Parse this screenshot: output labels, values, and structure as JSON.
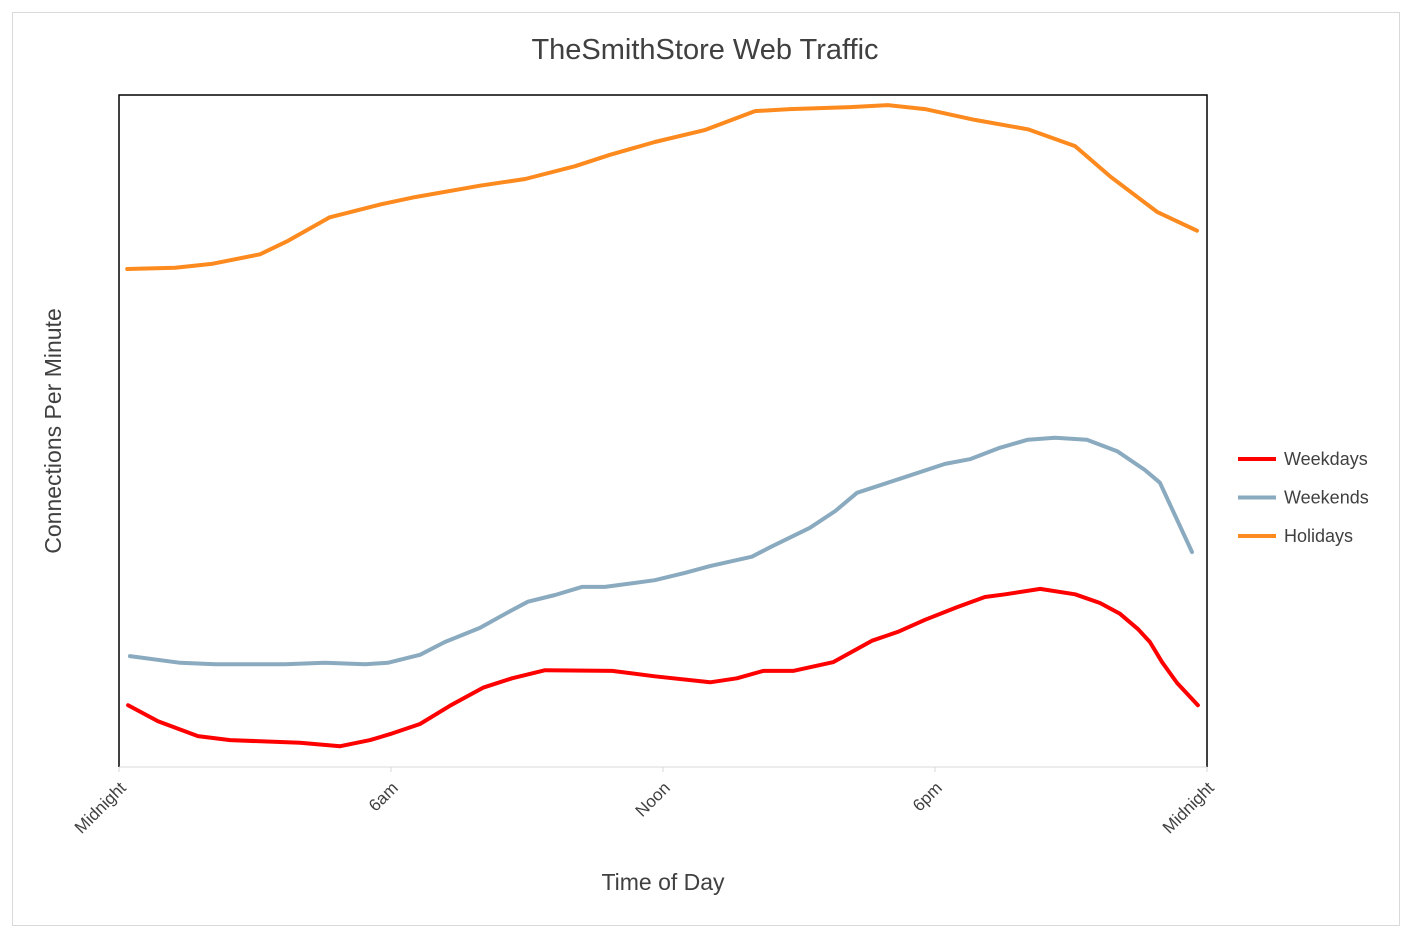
{
  "chart_data": {
    "type": "line",
    "title": "TheSmithStore Web Traffic",
    "xlabel": "Time of Day",
    "ylabel": "Connections Per Minute",
    "xlim": [
      0,
      24
    ],
    "ylim": [
      0,
      100
    ],
    "y_ticks_shown": false,
    "grid": false,
    "legend_position": "right",
    "x_ticks": [
      {
        "value": 0,
        "label": "Midnight"
      },
      {
        "value": 6,
        "label": "6am"
      },
      {
        "value": 12,
        "label": "Noon"
      },
      {
        "value": 18,
        "label": "6pm"
      },
      {
        "value": 24,
        "label": "Midnight"
      }
    ],
    "series": [
      {
        "name": "Weekdays",
        "color": "#ff0000",
        "points": [
          [
            0.2,
            9.2
          ],
          [
            0.86,
            6.8
          ],
          [
            1.74,
            4.6
          ],
          [
            2.45,
            4.0
          ],
          [
            3.99,
            3.6
          ],
          [
            4.88,
            3.1
          ],
          [
            5.54,
            4.0
          ],
          [
            5.98,
            4.9
          ],
          [
            6.64,
            6.4
          ],
          [
            7.3,
            9.1
          ],
          [
            8.03,
            11.8
          ],
          [
            8.67,
            13.2
          ],
          [
            9.4,
            14.4
          ],
          [
            10.88,
            14.3
          ],
          [
            11.82,
            13.5
          ],
          [
            13.04,
            12.6
          ],
          [
            13.63,
            13.2
          ],
          [
            14.21,
            14.3
          ],
          [
            14.87,
            14.3
          ],
          [
            15.75,
            15.6
          ],
          [
            16.61,
            18.8
          ],
          [
            17.18,
            20.1
          ],
          [
            17.78,
            21.9
          ],
          [
            18.49,
            23.8
          ],
          [
            19.1,
            25.3
          ],
          [
            19.55,
            25.7
          ],
          [
            20.32,
            26.5
          ],
          [
            21.09,
            25.7
          ],
          [
            21.64,
            24.4
          ],
          [
            22.08,
            22.8
          ],
          [
            22.48,
            20.5
          ],
          [
            22.74,
            18.6
          ],
          [
            23.01,
            15.6
          ],
          [
            23.34,
            12.5
          ],
          [
            23.8,
            9.2
          ]
        ]
      },
      {
        "name": "Weekends",
        "color": "#8aaabf",
        "points": [
          [
            0.24,
            16.5
          ],
          [
            1.35,
            15.5
          ],
          [
            2.12,
            15.3
          ],
          [
            3.66,
            15.3
          ],
          [
            4.54,
            15.5
          ],
          [
            5.43,
            15.3
          ],
          [
            5.93,
            15.5
          ],
          [
            6.64,
            16.7
          ],
          [
            7.19,
            18.6
          ],
          [
            7.96,
            20.7
          ],
          [
            8.63,
            23.2
          ],
          [
            9.02,
            24.6
          ],
          [
            9.62,
            25.6
          ],
          [
            10.21,
            26.8
          ],
          [
            10.72,
            26.8
          ],
          [
            11.82,
            27.8
          ],
          [
            12.49,
            28.9
          ],
          [
            13.04,
            29.9
          ],
          [
            13.96,
            31.3
          ],
          [
            14.36,
            32.7
          ],
          [
            15.24,
            35.6
          ],
          [
            15.8,
            38.1
          ],
          [
            16.28,
            40.8
          ],
          [
            17.23,
            42.9
          ],
          [
            18.22,
            45.1
          ],
          [
            18.77,
            45.8
          ],
          [
            19.43,
            47.5
          ],
          [
            20.05,
            48.7
          ],
          [
            20.65,
            49.0
          ],
          [
            21.35,
            48.7
          ],
          [
            22.02,
            47.0
          ],
          [
            22.63,
            44.2
          ],
          [
            22.96,
            42.3
          ],
          [
            23.67,
            32.0
          ]
        ]
      },
      {
        "name": "Holidays",
        "color": "#fd8a1e",
        "points": [
          [
            0.18,
            74.1
          ],
          [
            1.24,
            74.3
          ],
          [
            2.07,
            74.9
          ],
          [
            3.11,
            76.3
          ],
          [
            3.73,
            78.3
          ],
          [
            4.65,
            81.8
          ],
          [
            5.82,
            83.8
          ],
          [
            6.53,
            84.8
          ],
          [
            7.96,
            86.5
          ],
          [
            8.96,
            87.5
          ],
          [
            10.06,
            89.4
          ],
          [
            10.83,
            91.1
          ],
          [
            11.82,
            93.0
          ],
          [
            12.93,
            94.8
          ],
          [
            14.03,
            97.6
          ],
          [
            14.8,
            97.9
          ],
          [
            16.13,
            98.2
          ],
          [
            16.96,
            98.5
          ],
          [
            17.78,
            97.9
          ],
          [
            18.88,
            96.3
          ],
          [
            20.05,
            94.9
          ],
          [
            21.09,
            92.4
          ],
          [
            21.86,
            87.9
          ],
          [
            22.9,
            82.6
          ],
          [
            23.78,
            79.8
          ]
        ]
      }
    ]
  }
}
